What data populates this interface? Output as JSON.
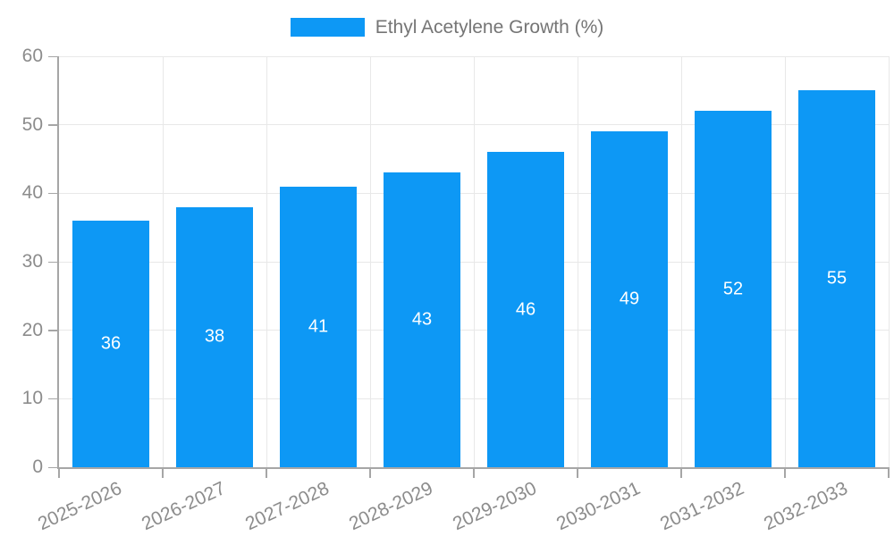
{
  "chart_data": {
    "type": "bar",
    "title": "",
    "categories": [
      "2025-2026",
      "2026-2027",
      "2027-2028",
      "2028-2029",
      "2029-2030",
      "2030-2031",
      "2031-2032",
      "2032-2033"
    ],
    "series": [
      {
        "name": "Ethyl Acetylene Growth (%)",
        "values": [
          36,
          38,
          41,
          43,
          46,
          49,
          52,
          55
        ]
      }
    ],
    "value_labels": [
      "36",
      "38",
      "41",
      "43",
      "46",
      "49",
      "52",
      "55"
    ],
    "ylim": [
      0,
      60
    ],
    "y_ticks": [
      0,
      10,
      20,
      30,
      40,
      50,
      60
    ],
    "grid": true,
    "legend_position": "top-center",
    "x_label_rotation_deg": -25,
    "colors": {
      "bar": "#0d98f5",
      "axis_text": "#8c8c8c",
      "grid_line": "#e8e8e8",
      "axis_line": "#a6a6a6",
      "value_label": "#ffffff",
      "legend_text": "#757575"
    }
  }
}
